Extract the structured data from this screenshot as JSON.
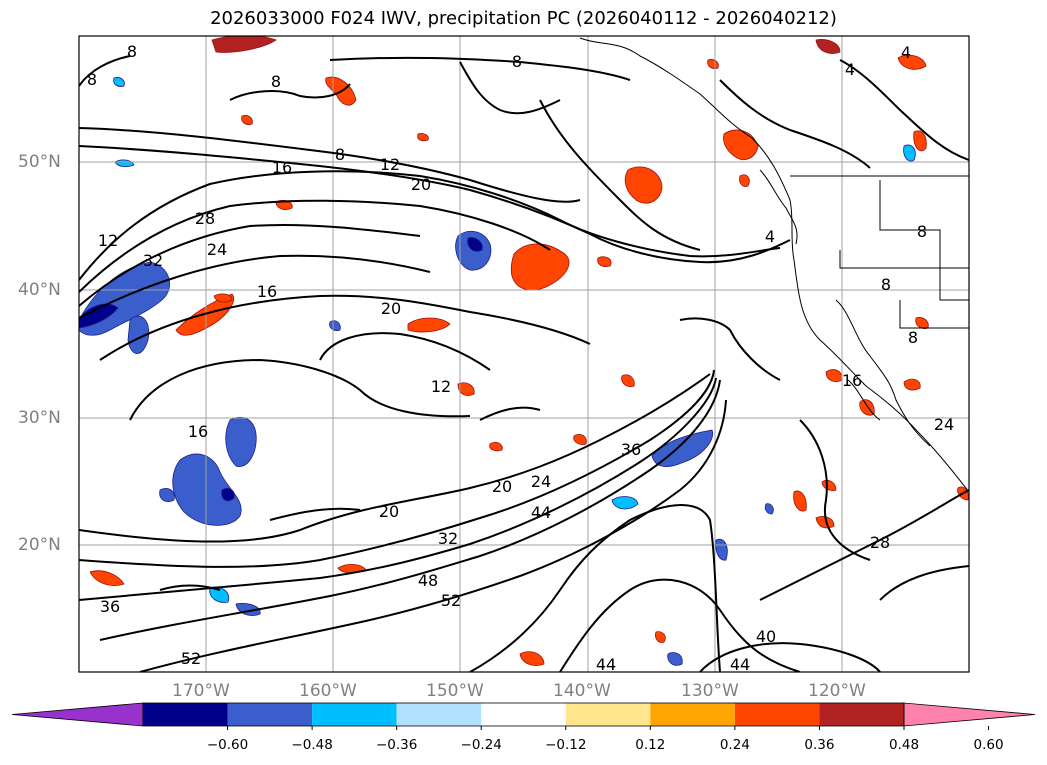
{
  "title": "2026033000 F024 IWV, precipitation PC (2026040112 - 2026040212)",
  "axes": {
    "lat_labels": [
      "50°N",
      "40°N",
      "30°N",
      "20°N"
    ],
    "lon_labels": [
      "170°W",
      "160°W",
      "150°W",
      "140°W",
      "130°W",
      "120°W"
    ]
  },
  "colorbar": {
    "ticks": [
      "−0.60",
      "−0.48",
      "−0.36",
      "−0.24",
      "−0.12",
      "0.12",
      "0.24",
      "0.36",
      "0.48",
      "0.60"
    ],
    "colors": [
      "#9932cc",
      "#00008b",
      "#3a5fcd",
      "#00bfff",
      "#b0e2ff",
      "#ffffff",
      "#ffe68c",
      "#ffa500",
      "#ff4500",
      "#b22222",
      "#ff82ab"
    ],
    "extend": "both"
  },
  "contour_labels": [
    "8",
    "8",
    "8",
    "8",
    "4",
    "4",
    "16",
    "8",
    "12",
    "20",
    "28",
    "24",
    "12",
    "32",
    "16",
    "20",
    "12",
    "16",
    "20",
    "20",
    "24",
    "36",
    "44",
    "32",
    "48",
    "52",
    "36",
    "52",
    "44",
    "44",
    "40",
    "28",
    "16",
    "4",
    "8",
    "8",
    "8",
    "24"
  ],
  "colors": {
    "precip_negative": "#3a5fcd",
    "precip_positive": "#ff4500",
    "grid": "#a0a0a0",
    "contour": "#000000"
  },
  "grid": true
}
